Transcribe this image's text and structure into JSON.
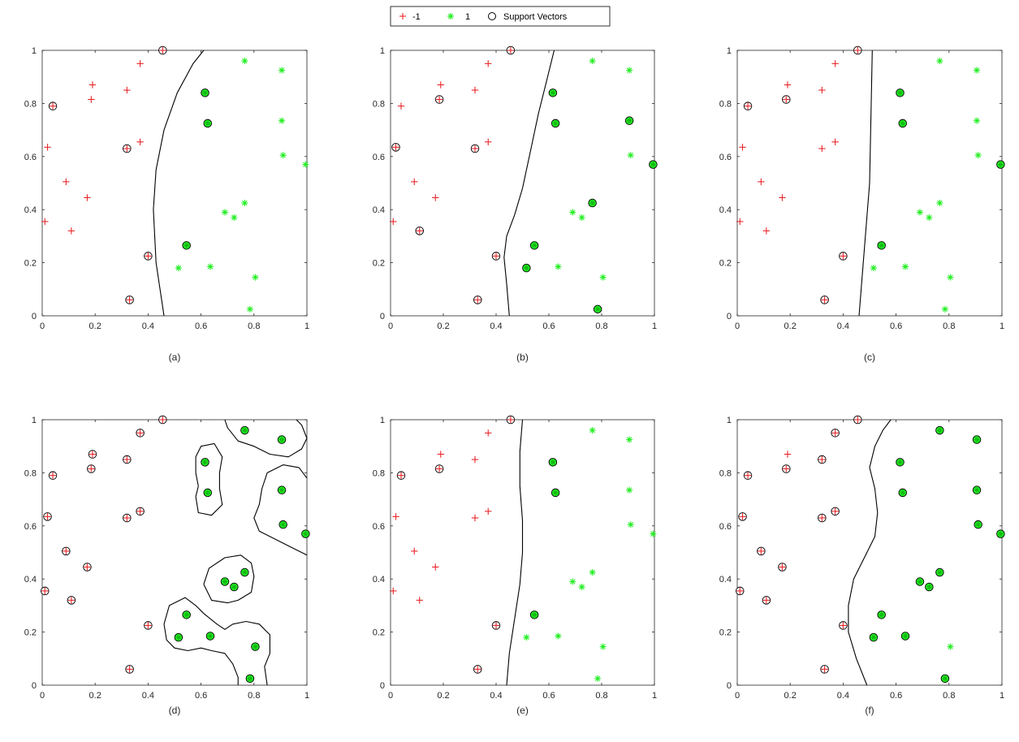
{
  "legend": {
    "placement": "top-center",
    "entries": [
      {
        "label": "-1",
        "marker": "plus",
        "color": "#e8262a"
      },
      {
        "label": "1",
        "marker": "asterisk",
        "color": "#22ee22"
      },
      {
        "label": "Support Vectors",
        "marker": "circle",
        "color": "#000000"
      }
    ]
  },
  "chart_data": [
    {
      "type": "scatter",
      "panel_label": "(a)",
      "xlim": [
        0,
        1
      ],
      "ylim": [
        0,
        1
      ],
      "xticks": [
        "0",
        "0.2",
        "0.4",
        "0.6",
        "0.8",
        "1"
      ],
      "yticks": [
        "0",
        "0.2",
        "0.4",
        "0.6",
        "0.8",
        "1"
      ],
      "support_vectors": {
        "neg": [
          2,
          10,
          12,
          13,
          14
        ],
        "pos": [
          0,
          1,
          7
        ]
      },
      "boundaries": [
        [
          [
            0.46,
            0.0
          ],
          [
            0.43,
            0.2
          ],
          [
            0.42,
            0.4
          ],
          [
            0.43,
            0.55
          ],
          [
            0.46,
            0.7
          ],
          [
            0.51,
            0.84
          ],
          [
            0.57,
            0.95
          ],
          [
            0.61,
            1.0
          ]
        ]
      ]
    },
    {
      "type": "scatter",
      "panel_label": "(b)",
      "xlim": [
        0,
        1
      ],
      "ylim": [
        0,
        1
      ],
      "xticks": [
        "0",
        "0.2",
        "0.4",
        "0.6",
        "0.8",
        "1"
      ],
      "yticks": [
        "0",
        "0.2",
        "0.4",
        "0.6",
        "0.8",
        "1"
      ],
      "support_vectors": {
        "neg": [
          1,
          4,
          6,
          10,
          12,
          13,
          14
        ],
        "pos": [
          0,
          1,
          4,
          6,
          7,
          8,
          12,
          14
        ]
      },
      "boundaries": [
        [
          [
            0.45,
            0.0
          ],
          [
            0.44,
            0.12
          ],
          [
            0.43,
            0.22
          ],
          [
            0.44,
            0.3
          ],
          [
            0.47,
            0.38
          ],
          [
            0.5,
            0.48
          ],
          [
            0.53,
            0.62
          ],
          [
            0.56,
            0.76
          ],
          [
            0.59,
            0.88
          ],
          [
            0.62,
            1.0
          ]
        ]
      ]
    },
    {
      "type": "scatter",
      "panel_label": "(c)",
      "xlim": [
        0,
        1
      ],
      "ylim": [
        0,
        1
      ],
      "xticks": [
        "0",
        "0.2",
        "0.4",
        "0.6",
        "0.8",
        "1"
      ],
      "yticks": [
        "0",
        "0.2",
        "0.4",
        "0.6",
        "0.8",
        "1"
      ],
      "support_vectors": {
        "neg": [
          2,
          6,
          12,
          13,
          14
        ],
        "pos": [
          0,
          1,
          6,
          7
        ]
      },
      "boundaries": [
        [
          [
            0.46,
            0.0
          ],
          [
            0.5,
            0.5
          ],
          [
            0.51,
            1.0
          ]
        ]
      ]
    },
    {
      "type": "scatter",
      "panel_label": "(d)",
      "xlim": [
        0,
        1
      ],
      "ylim": [
        0,
        1
      ],
      "xticks": [
        "0",
        "0.2",
        "0.4",
        "0.6",
        "0.8",
        "1"
      ],
      "yticks": [
        "0",
        "0.2",
        "0.4",
        "0.6",
        "0.8",
        "1"
      ],
      "support_vectors": {
        "neg": [
          0,
          1,
          2,
          3,
          4,
          5,
          6,
          7,
          8,
          9,
          10,
          11,
          12,
          13,
          14
        ],
        "pos": [
          0,
          1,
          2,
          3,
          4,
          5,
          6,
          7,
          8,
          9,
          10,
          11,
          12,
          13,
          14
        ]
      },
      "boundaries": [
        [
          [
            0.58,
            0.8
          ],
          [
            0.58,
            0.86
          ],
          [
            0.6,
            0.9
          ],
          [
            0.65,
            0.91
          ],
          [
            0.68,
            0.86
          ],
          [
            0.67,
            0.8
          ],
          [
            0.67,
            0.74
          ],
          [
            0.68,
            0.68
          ],
          [
            0.64,
            0.64
          ],
          [
            0.59,
            0.65
          ],
          [
            0.58,
            0.71
          ],
          [
            0.59,
            0.75
          ],
          [
            0.58,
            0.8
          ]
        ],
        [
          [
            0.69,
            1.0
          ],
          [
            0.7,
            0.97
          ],
          [
            0.74,
            0.92
          ],
          [
            0.8,
            0.9
          ],
          [
            0.86,
            0.87
          ],
          [
            0.93,
            0.86
          ],
          [
            0.98,
            0.89
          ],
          [
            1.0,
            0.93
          ],
          [
            0.98,
            0.98
          ],
          [
            0.96,
            1.0
          ]
        ],
        [
          [
            1.0,
            0.78
          ],
          [
            0.97,
            0.82
          ],
          [
            0.91,
            0.83
          ],
          [
            0.85,
            0.8
          ],
          [
            0.83,
            0.74
          ],
          [
            0.82,
            0.68
          ],
          [
            0.8,
            0.63
          ],
          [
            0.82,
            0.58
          ],
          [
            0.88,
            0.55
          ],
          [
            0.94,
            0.52
          ],
          [
            1.0,
            0.49
          ]
        ],
        [
          [
            0.61,
            0.38
          ],
          [
            0.63,
            0.44
          ],
          [
            0.69,
            0.48
          ],
          [
            0.75,
            0.49
          ],
          [
            0.79,
            0.46
          ],
          [
            0.8,
            0.41
          ],
          [
            0.79,
            0.35
          ],
          [
            0.74,
            0.32
          ],
          [
            0.7,
            0.31
          ],
          [
            0.64,
            0.32
          ],
          [
            0.61,
            0.38
          ]
        ],
        [
          [
            0.46,
            0.23
          ],
          [
            0.48,
            0.3
          ],
          [
            0.54,
            0.33
          ],
          [
            0.58,
            0.3
          ],
          [
            0.61,
            0.27
          ],
          [
            0.66,
            0.23
          ],
          [
            0.69,
            0.21
          ],
          [
            0.72,
            0.23
          ],
          [
            0.77,
            0.24
          ],
          [
            0.82,
            0.23
          ],
          [
            0.86,
            0.19
          ],
          [
            0.86,
            0.12
          ],
          [
            0.84,
            0.07
          ],
          [
            0.85,
            0.0
          ]
        ],
        [
          [
            0.46,
            0.23
          ],
          [
            0.47,
            0.17
          ],
          [
            0.5,
            0.14
          ],
          [
            0.55,
            0.13
          ],
          [
            0.6,
            0.14
          ],
          [
            0.64,
            0.13
          ],
          [
            0.69,
            0.12
          ],
          [
            0.72,
            0.08
          ],
          [
            0.74,
            0.03
          ],
          [
            0.74,
            0.0
          ]
        ]
      ]
    },
    {
      "type": "scatter",
      "panel_label": "(e)",
      "xlim": [
        0,
        1
      ],
      "ylim": [
        0,
        1
      ],
      "xticks": [
        "0",
        "0.2",
        "0.4",
        "0.6",
        "0.8",
        "1"
      ],
      "yticks": [
        "0",
        "0.2",
        "0.4",
        "0.6",
        "0.8",
        "1"
      ],
      "support_vectors": {
        "neg": [
          2,
          6,
          12,
          13,
          14
        ],
        "pos": [
          0,
          1,
          7
        ]
      },
      "boundaries": [
        [
          [
            0.44,
            0.0
          ],
          [
            0.45,
            0.12
          ],
          [
            0.47,
            0.25
          ],
          [
            0.49,
            0.38
          ],
          [
            0.5,
            0.5
          ],
          [
            0.5,
            0.62
          ],
          [
            0.49,
            0.75
          ],
          [
            0.49,
            0.88
          ],
          [
            0.5,
            1.0
          ]
        ]
      ]
    },
    {
      "type": "scatter",
      "panel_label": "(f)",
      "xlim": [
        0,
        1
      ],
      "ylim": [
        0,
        1
      ],
      "xticks": [
        "0",
        "0.2",
        "0.4",
        "0.6",
        "0.8",
        "1"
      ],
      "yticks": [
        "0",
        "0.2",
        "0.4",
        "0.6",
        "0.8",
        "1"
      ],
      "support_vectors": {
        "neg": [
          0,
          1,
          2,
          3,
          4,
          5,
          6,
          8,
          9,
          10,
          11,
          12,
          13,
          14
        ],
        "pos": [
          0,
          1,
          2,
          3,
          4,
          5,
          6,
          7,
          8,
          9,
          10,
          11,
          12,
          14
        ]
      },
      "boundaries": [
        [
          [
            0.49,
            0.0
          ],
          [
            0.45,
            0.1
          ],
          [
            0.42,
            0.2
          ],
          [
            0.42,
            0.3
          ],
          [
            0.44,
            0.4
          ],
          [
            0.48,
            0.48
          ],
          [
            0.52,
            0.56
          ],
          [
            0.53,
            0.65
          ],
          [
            0.52,
            0.74
          ],
          [
            0.5,
            0.82
          ],
          [
            0.52,
            0.9
          ],
          [
            0.55,
            0.96
          ],
          [
            0.58,
            1.0
          ]
        ]
      ]
    }
  ],
  "points": {
    "neg": [
      [
        0.01,
        0.355
      ],
      [
        0.02,
        0.635
      ],
      [
        0.04,
        0.79
      ],
      [
        0.09,
        0.505
      ],
      [
        0.11,
        0.32
      ],
      [
        0.17,
        0.445
      ],
      [
        0.185,
        0.815
      ],
      [
        0.19,
        0.87
      ],
      [
        0.32,
        0.85
      ],
      [
        0.37,
        0.95
      ],
      [
        0.32,
        0.63
      ],
      [
        0.37,
        0.655
      ],
      [
        0.455,
        1.0
      ],
      [
        0.33,
        0.06
      ],
      [
        0.4,
        0.225
      ]
    ],
    "pos": [
      [
        0.615,
        0.84
      ],
      [
        0.625,
        0.725
      ],
      [
        0.765,
        0.96
      ],
      [
        0.905,
        0.925
      ],
      [
        0.905,
        0.735
      ],
      [
        0.91,
        0.605
      ],
      [
        0.995,
        0.57
      ],
      [
        0.545,
        0.265
      ],
      [
        0.515,
        0.18
      ],
      [
        0.635,
        0.185
      ],
      [
        0.69,
        0.39
      ],
      [
        0.725,
        0.37
      ],
      [
        0.765,
        0.425
      ],
      [
        0.805,
        0.145
      ],
      [
        0.785,
        0.025
      ]
    ]
  }
}
